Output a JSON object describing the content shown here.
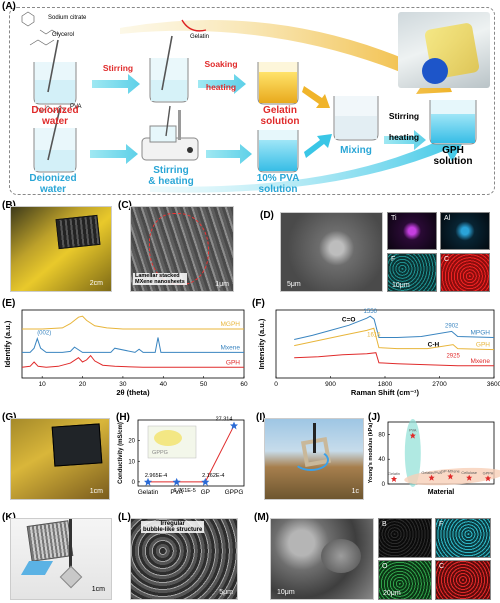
{
  "panel_a": {
    "label": "(A)",
    "sodium_citrate": "Sodium citrate",
    "glycerol": "Glycerol",
    "gelatin": "Gelatin",
    "pva": "PVA",
    "stirring": "Stirring",
    "soaking_heating_1": "Soaking",
    "soaking_heating_2": "heating",
    "deionized_water_top_1": "Deionized",
    "deionized_water_top_2": "water",
    "gelatin_solution_1": "Gelatin",
    "gelatin_solution_2": "solution",
    "mixing": "Mixing",
    "stirring_heating_right_1": "Stirring",
    "stirring_heating_right_2": "heating",
    "gph_solution_1": "GPH",
    "gph_solution_2": "solution",
    "deionized_water_bottom_1": "Deionized",
    "deionized_water_bottom_2": "water",
    "stirring_heating_bottom_1": "Stirring",
    "stirring_heating_bottom_2": "& heating",
    "pva_solution_1": "10% PVA",
    "pva_solution_2": "solution"
  },
  "panel_b": {
    "label": "(B)",
    "scale": "2cm"
  },
  "panel_c": {
    "label": "(C)",
    "caption_1": "Lamellar stacked",
    "caption_2": "MXene nanosheets",
    "scale": "1μm"
  },
  "panel_d": {
    "label": "(D)",
    "scale_main": "5μm",
    "scale_eds": "10μm",
    "elements": [
      "Ti",
      "Al",
      "F",
      "C"
    ]
  },
  "panel_g": {
    "label": "(G)",
    "scale": "1cm"
  },
  "panel_i": {
    "label": "(I)",
    "scale": "1c"
  },
  "panel_k": {
    "label": "(K)",
    "scale": "1cm"
  },
  "panel_l": {
    "label": "(L)",
    "caption_1": "Irregular",
    "caption_2": "bubble-like structure",
    "scale": "5μm"
  },
  "panel_m": {
    "label": "(M)",
    "scale_main": "10μm",
    "scale_eds": "20μm",
    "elements": [
      "B",
      "F",
      "O",
      "C"
    ]
  },
  "colors": {
    "red_text": "#e02b2b",
    "blue_text": "#2aa6d6",
    "gold": "#e8b53a",
    "dashed_border": "#888888"
  },
  "chart_data": [
    {
      "id": "E",
      "label": "(E)",
      "type": "line",
      "xlabel": "2θ (theta)",
      "ylabel": "Identify (a.u.)",
      "xlim": [
        5,
        60
      ],
      "xticks": [
        10,
        20,
        30,
        40,
        50,
        60
      ],
      "annotation": "(002)",
      "series": [
        {
          "name": "MGPH",
          "color": "#e8b53a",
          "x": [
            5,
            10,
            15,
            17,
            19,
            20,
            21,
            23,
            26,
            30,
            40,
            50,
            60
          ],
          "y": [
            2.3,
            2.3,
            2.35,
            2.55,
            2.85,
            2.9,
            2.7,
            2.45,
            2.35,
            2.3,
            2.3,
            2.3,
            2.3
          ]
        },
        {
          "name": "Mxene",
          "color": "#3a85c0",
          "x": [
            5,
            7,
            8,
            8.8,
            9.6,
            11,
            15,
            17,
            18,
            20,
            25,
            27,
            28,
            33,
            34,
            35,
            38,
            38.7,
            39.4,
            42,
            45,
            50,
            60
          ],
          "y": [
            1.2,
            1.2,
            1.4,
            1.85,
            1.4,
            1.2,
            1.2,
            1.25,
            1.45,
            1.2,
            1.2,
            1.2,
            1.4,
            1.2,
            1.35,
            1.2,
            1.2,
            1.9,
            1.2,
            1.2,
            1.2,
            1.2,
            1.2
          ]
        },
        {
          "name": "GPH",
          "color": "#e02b2b",
          "x": [
            5,
            7,
            8,
            9,
            11,
            14,
            17,
            19,
            20,
            21,
            22,
            23,
            25,
            28,
            35,
            45,
            60
          ],
          "y": [
            0.5,
            0.55,
            0.75,
            0.55,
            0.5,
            0.55,
            0.7,
            0.95,
            0.75,
            0.85,
            1.05,
            0.8,
            0.6,
            0.55,
            0.5,
            0.5,
            0.5
          ]
        }
      ]
    },
    {
      "id": "F",
      "label": "(F)",
      "type": "line",
      "xlabel": "Raman Shift (cm⁻¹)",
      "ylabel": "Intensity (a.u.)",
      "xlim": [
        0,
        3600
      ],
      "xticks": [
        0,
        900,
        1800,
        2700,
        3600
      ],
      "annotations": [
        "1556",
        "C=O",
        "1615",
        "2902",
        "C-H",
        "2925"
      ],
      "series": [
        {
          "name": "MPGH",
          "color": "#3a85c0",
          "x": [
            300,
            600,
            900,
            1200,
            1500,
            1556,
            1620,
            1700,
            2000,
            2400,
            2902,
            3000,
            3600
          ],
          "y": [
            1.9,
            2.1,
            2.35,
            2.6,
            2.95,
            3.05,
            2.9,
            2.0,
            2.0,
            2.05,
            2.3,
            2.05,
            2.0
          ]
        },
        {
          "name": "GPH",
          "color": "#e8b53a",
          "x": [
            300,
            700,
            1100,
            1500,
            1615,
            1700,
            2000,
            2500,
            2925,
            3000,
            3600
          ],
          "y": [
            1.6,
            1.85,
            2.1,
            2.35,
            2.45,
            1.5,
            1.45,
            1.45,
            1.65,
            1.45,
            1.4
          ]
        },
        {
          "name": "Mxene",
          "color": "#e02b2b",
          "x": [
            300,
            700,
            1100,
            1500,
            1650,
            1700,
            2000,
            2500,
            3000,
            3600
          ],
          "y": [
            1.0,
            1.05,
            1.15,
            1.2,
            1.25,
            0.75,
            0.7,
            0.65,
            0.6,
            0.6
          ]
        }
      ]
    },
    {
      "id": "H",
      "label": "(H)",
      "type": "line",
      "ylabel": "Conductivity (mS/cm)",
      "categories": [
        "Gelatin",
        "PVA",
        "GP",
        "GPPG"
      ],
      "yticks": [
        0,
        10,
        20
      ],
      "ylim": [
        -2,
        30
      ],
      "values": [
        0.00029651,
        6.761e-05,
        0.00021625,
        27.314
      ],
      "value_labels": [
        "2.965E-4",
        "6.761E-5",
        "2.162E-4",
        "27.314"
      ],
      "inset_label": "GPPG"
    },
    {
      "id": "J",
      "label": "(J)",
      "type": "scatter",
      "ylabel": "Young's modulus (kPa)",
      "xlabel": "Material",
      "yticks": [
        0,
        40,
        80
      ],
      "ylim": [
        0,
        100
      ],
      "x": [
        1,
        2,
        3,
        4,
        5,
        6
      ],
      "y": [
        8,
        78,
        10,
        12,
        10,
        9
      ],
      "point_labels": [
        "Gelatin",
        "PVA",
        "Gelatin/PVA",
        "GP-MXene",
        "Cellulose",
        "GPPH"
      ]
    }
  ]
}
